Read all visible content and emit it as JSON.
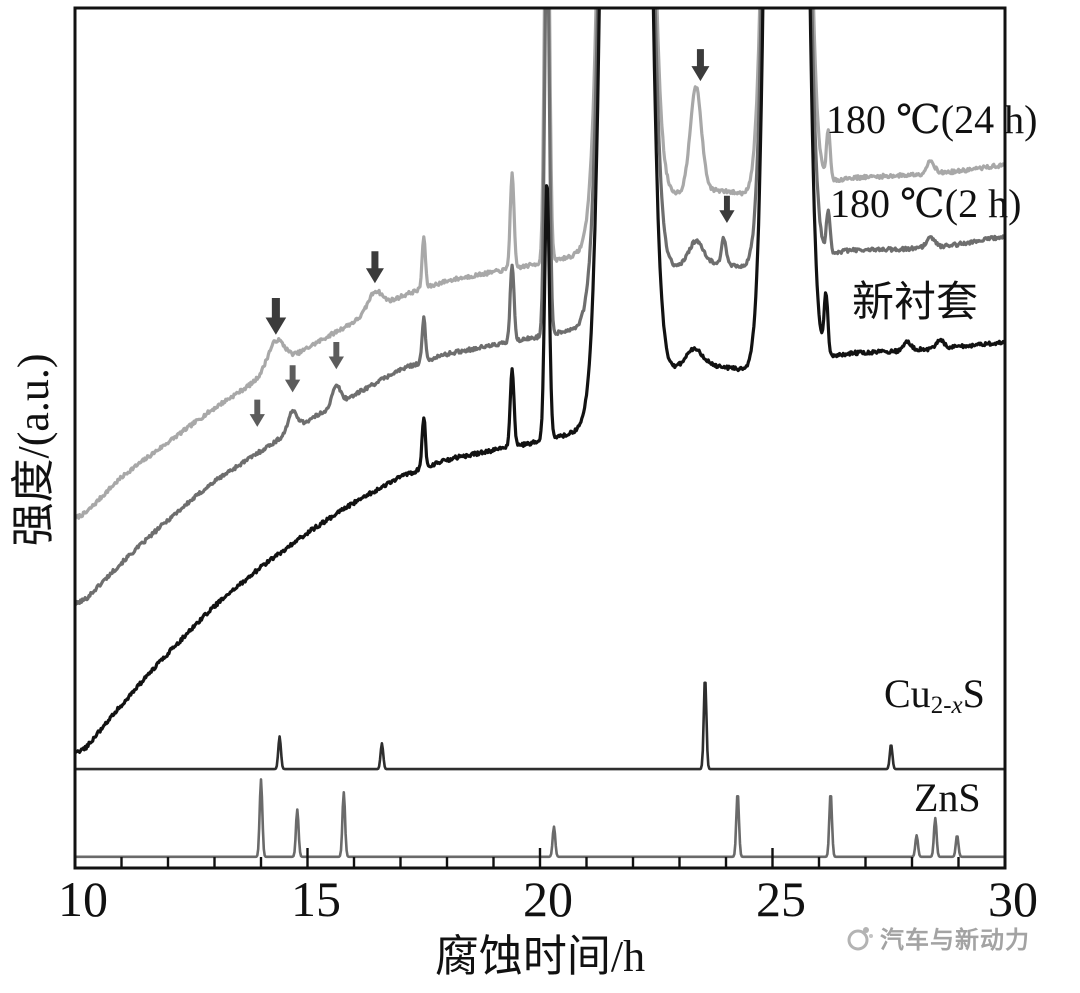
{
  "figure": {
    "watermark_text": "汽车与新动力"
  },
  "chart_data": {
    "type": "line",
    "title": "",
    "xlabel": "腐蚀时间/h",
    "ylabel": "强度/(a.u.)",
    "xlim": [
      10,
      30
    ],
    "x_tick_labels": [
      "10",
      "15",
      "20",
      "25",
      "30"
    ],
    "x_minor_tick_step": 1,
    "ylim": [
      0,
      100
    ],
    "y_axis_note": "intensity in arbitrary units, no y ticks",
    "legend_position": "labels at right of each curve",
    "series": [
      {
        "name": "180 ℃(24 h)",
        "color": "#a8a8a8",
        "baseline": [
          [
            10,
            40
          ],
          [
            11,
            45.5
          ],
          [
            12,
            49.5
          ],
          [
            13,
            53.5
          ],
          [
            14,
            57
          ],
          [
            15,
            60.5
          ],
          [
            16,
            63.5
          ],
          [
            17,
            66.5
          ],
          [
            18,
            68.3
          ],
          [
            19,
            69.3
          ],
          [
            20,
            70.3
          ],
          [
            21,
            71.5
          ],
          [
            22,
            73.5
          ],
          [
            22.7,
            78
          ],
          [
            23.4,
            79
          ],
          [
            24.3,
            78.5
          ],
          [
            24.8,
            77.5
          ],
          [
            25.8,
            79
          ],
          [
            26.5,
            80.2
          ],
          [
            28,
            80.6
          ],
          [
            29,
            81
          ],
          [
            30,
            81.8
          ]
        ],
        "peaks": [
          [
            14.32,
            3.2,
            0.18
          ],
          [
            16.45,
            2.2,
            0.15
          ],
          [
            17.5,
            6,
            0.035
          ],
          [
            19.4,
            11,
            0.04
          ],
          [
            20.15,
            55,
            0.05
          ],
          [
            21.85,
            400,
            0.28
          ],
          [
            23.35,
            12,
            0.12
          ],
          [
            25.3,
            400,
            0.24
          ],
          [
            26.2,
            6,
            0.04
          ],
          [
            28.4,
            1.5,
            0.08
          ]
        ]
      },
      {
        "name": "180 ℃(2 h)",
        "color": "#6e6e6e",
        "baseline": [
          [
            10,
            30
          ],
          [
            11,
            35.5
          ],
          [
            12,
            40.5
          ],
          [
            13,
            45
          ],
          [
            14,
            48.5
          ],
          [
            15,
            52
          ],
          [
            16,
            55
          ],
          [
            17,
            58
          ],
          [
            18,
            59.8
          ],
          [
            19,
            60.8
          ],
          [
            20,
            61.8
          ],
          [
            21,
            63
          ],
          [
            22,
            65
          ],
          [
            22.7,
            69.5
          ],
          [
            23.4,
            70.5
          ],
          [
            24.3,
            70
          ],
          [
            24.8,
            69
          ],
          [
            25.8,
            70.5
          ],
          [
            26.5,
            71.8
          ],
          [
            28,
            72
          ],
          [
            29,
            72.5
          ],
          [
            30,
            73.5
          ]
        ],
        "peaks": [
          [
            14.68,
            2.2,
            0.1
          ],
          [
            15.62,
            2.2,
            0.09
          ],
          [
            17.5,
            5,
            0.035
          ],
          [
            19.4,
            9,
            0.04
          ],
          [
            20.15,
            48,
            0.05
          ],
          [
            21.85,
            400,
            0.28
          ],
          [
            23.35,
            2.5,
            0.15
          ],
          [
            23.95,
            3,
            0.05
          ],
          [
            25.3,
            400,
            0.24
          ],
          [
            26.2,
            5,
            0.04
          ],
          [
            28.4,
            1.2,
            0.08
          ]
        ]
      },
      {
        "name": "新衬套",
        "color": "#121212",
        "baseline": [
          [
            10,
            12.5
          ],
          [
            11,
            19
          ],
          [
            12,
            25
          ],
          [
            13,
            30.5
          ],
          [
            14,
            35
          ],
          [
            15,
            39
          ],
          [
            16,
            42.5
          ],
          [
            17,
            45.5
          ],
          [
            18,
            47.5
          ],
          [
            19,
            48.6
          ],
          [
            20,
            49.6
          ],
          [
            21,
            51
          ],
          [
            22,
            53
          ],
          [
            22.7,
            57.5
          ],
          [
            23.4,
            58.6
          ],
          [
            24.3,
            58
          ],
          [
            24.8,
            57
          ],
          [
            25.8,
            58.5
          ],
          [
            26.5,
            59.8
          ],
          [
            28,
            60.2
          ],
          [
            29,
            60.6
          ],
          [
            30,
            61.2
          ]
        ],
        "peaks": [
          [
            17.5,
            6,
            0.035
          ],
          [
            19.4,
            9,
            0.04
          ],
          [
            20.15,
            30,
            0.05
          ],
          [
            21.85,
            400,
            0.28
          ],
          [
            23.3,
            2,
            0.18
          ],
          [
            25.3,
            400,
            0.24
          ],
          [
            26.15,
            7,
            0.04
          ],
          [
            27.9,
            1,
            0.08
          ],
          [
            28.6,
            1,
            0.08
          ]
        ]
      }
    ],
    "reference_patterns": [
      {
        "name": "Cu2-xS",
        "label": {
          "pre": "Cu",
          "sub_num": "2-",
          "sub_var": "x",
          "post": "S"
        },
        "color": "#2e2e2e",
        "level": 11.5,
        "sticks": [
          [
            14.4,
            3.8
          ],
          [
            16.6,
            3.0
          ],
          [
            23.55,
            10.7
          ],
          [
            27.55,
            2.9
          ]
        ]
      },
      {
        "name": "ZnS",
        "label": {
          "pre": "ZnS",
          "sub_num": "",
          "sub_var": "",
          "post": ""
        },
        "color": "#6a6a6a",
        "level": 1.3,
        "sticks": [
          [
            14.0,
            9
          ],
          [
            14.78,
            5.5
          ],
          [
            15.78,
            7.5
          ],
          [
            20.3,
            3.5
          ],
          [
            24.25,
            7.5
          ],
          [
            26.25,
            7.5
          ],
          [
            28.1,
            2.5
          ],
          [
            28.5,
            4.5
          ],
          [
            28.97,
            2.5
          ]
        ]
      }
    ],
    "arrows": [
      {
        "x": 23.45,
        "tip": 91.5,
        "size": 1.0,
        "color": "#3b3b3b"
      },
      {
        "x": 16.45,
        "tip": 68.0,
        "size": 1.0,
        "color": "#3b3b3b"
      },
      {
        "x": 14.32,
        "tip": 62.0,
        "size": 1.15,
        "color": "#3b3b3b"
      },
      {
        "x": 14.68,
        "tip": 55.3,
        "size": 0.85,
        "color": "#5c5c5c"
      },
      {
        "x": 15.62,
        "tip": 58.0,
        "size": 0.85,
        "color": "#5c5c5c"
      },
      {
        "x": 13.92,
        "tip": 51.3,
        "size": 0.85,
        "color": "#5c5c5c"
      },
      {
        "x": 24.02,
        "tip": 75.0,
        "size": 0.85,
        "color": "#3b3b3b"
      }
    ]
  }
}
